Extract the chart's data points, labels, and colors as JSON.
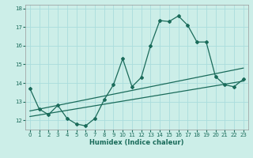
{
  "title": "",
  "xlabel": "Humidex (Indice chaleur)",
  "bg_color": "#cceee8",
  "grid_color": "#aadddd",
  "line_color": "#1a6b5a",
  "xlim": [
    -0.5,
    23.5
  ],
  "ylim": [
    11.5,
    18.2
  ],
  "yticks": [
    12,
    13,
    14,
    15,
    16,
    17,
    18
  ],
  "xticks": [
    0,
    1,
    2,
    3,
    4,
    5,
    6,
    7,
    8,
    9,
    10,
    11,
    12,
    13,
    14,
    15,
    16,
    17,
    18,
    19,
    20,
    21,
    22,
    23
  ],
  "series1_x": [
    0,
    1,
    2,
    3,
    4,
    5,
    6,
    7,
    8,
    9,
    10,
    11,
    12,
    13,
    14,
    15,
    16,
    17,
    18,
    19,
    20,
    21,
    22,
    23
  ],
  "series1_y": [
    13.7,
    12.6,
    12.3,
    12.8,
    12.1,
    11.8,
    11.7,
    12.1,
    13.1,
    13.9,
    15.3,
    13.8,
    14.3,
    16.0,
    17.35,
    17.3,
    17.6,
    17.1,
    16.2,
    16.2,
    14.35,
    13.9,
    13.8,
    14.2
  ],
  "series2_x": [
    0,
    23
  ],
  "series2_y": [
    12.5,
    14.8
  ],
  "series3_x": [
    0,
    23
  ],
  "series3_y": [
    12.2,
    14.1
  ],
  "tick_fontsize": 5,
  "xlabel_fontsize": 6,
  "lw": 0.9,
  "marker_size": 2.0
}
